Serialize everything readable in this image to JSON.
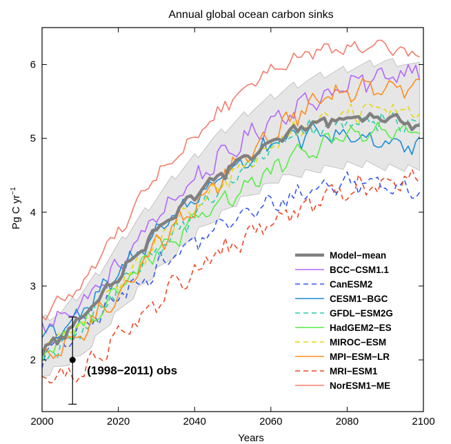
{
  "chart_data": {
    "type": "line",
    "title": "Annual global ocean carbon sinks",
    "xlabel": "Years",
    "ylabel": "Pg C yr",
    "ylabel_sup": "−1",
    "xlim": [
      2000,
      2100
    ],
    "ylim": [
      1.3,
      6.5
    ],
    "x_ticks": [
      2000,
      2020,
      2040,
      2060,
      2080,
      2100
    ],
    "y_ticks": [
      2,
      3,
      4,
      5,
      6
    ],
    "legend_position": "bottom-right",
    "grid": false,
    "band": {
      "x": [
        2000,
        2005,
        2010,
        2015,
        2020,
        2025,
        2030,
        2035,
        2040,
        2045,
        2050,
        2055,
        2060,
        2065,
        2070,
        2075,
        2080,
        2085,
        2090,
        2095,
        2099
      ],
      "upper": [
        2.55,
        2.65,
        2.9,
        3.2,
        3.55,
        3.9,
        4.2,
        4.5,
        4.75,
        5.0,
        5.2,
        5.4,
        5.55,
        5.7,
        5.8,
        5.88,
        5.95,
        6.0,
        6.05,
        6.02,
        5.98
      ],
      "lower": [
        1.8,
        1.92,
        2.05,
        2.35,
        2.65,
        2.95,
        3.2,
        3.45,
        3.7,
        3.9,
        4.1,
        4.25,
        4.4,
        4.5,
        4.55,
        4.6,
        4.65,
        4.65,
        4.62,
        4.6,
        4.58
      ],
      "color": "#e6e6e6"
    },
    "series": [
      {
        "name": "Model−mean",
        "color": "#808080",
        "dash": "",
        "width": 4.5,
        "noise": 0.03,
        "amp": 0.08,
        "x": [
          2000,
          2005,
          2010,
          2020,
          2030,
          2040,
          2050,
          2060,
          2070,
          2080,
          2090,
          2099
        ],
        "y": [
          2.12,
          2.3,
          2.55,
          3.15,
          3.75,
          4.25,
          4.62,
          4.95,
          5.2,
          5.27,
          5.3,
          5.18
        ]
      },
      {
        "name": "BCC−CSM1.1",
        "color": "#b266ff",
        "dash": "",
        "width": 1.6,
        "noise": 0.12,
        "amp": 0.15,
        "x": [
          2000,
          2010,
          2020,
          2030,
          2040,
          2050,
          2060,
          2070,
          2080,
          2090,
          2099
        ],
        "y": [
          2.45,
          2.75,
          3.25,
          3.95,
          4.45,
          4.85,
          5.25,
          5.5,
          5.7,
          5.85,
          5.95
        ]
      },
      {
        "name": "CanESM2",
        "color": "#3355ee",
        "dash": "7,5",
        "width": 1.6,
        "noise": 0.12,
        "amp": 0.15,
        "x": [
          2000,
          2010,
          2020,
          2030,
          2040,
          2050,
          2060,
          2070,
          2080,
          2090,
          2099
        ],
        "y": [
          2.05,
          2.4,
          2.85,
          3.25,
          3.6,
          3.9,
          4.1,
          4.3,
          4.4,
          4.4,
          4.3
        ]
      },
      {
        "name": "CESM1−BGC",
        "color": "#1a8cd8",
        "dash": "",
        "width": 1.6,
        "noise": 0.12,
        "amp": 0.15,
        "x": [
          2000,
          2010,
          2020,
          2030,
          2040,
          2050,
          2060,
          2070,
          2080,
          2090,
          2099
        ],
        "y": [
          2.3,
          2.6,
          3.15,
          3.75,
          4.2,
          4.6,
          4.9,
          5.05,
          5.05,
          4.95,
          4.85
        ]
      },
      {
        "name": "GFDL−ESM2G",
        "color": "#22ccaa",
        "dash": "7,5",
        "width": 1.6,
        "noise": 0.12,
        "amp": 0.15,
        "x": [
          2000,
          2010,
          2020,
          2030,
          2040,
          2050,
          2060,
          2070,
          2080,
          2090,
          2099
        ],
        "y": [
          2.0,
          2.35,
          2.95,
          3.5,
          4.0,
          4.45,
          4.85,
          5.1,
          5.2,
          5.25,
          5.2
        ]
      },
      {
        "name": "HadGEM2−ES",
        "color": "#55ee44",
        "dash": "",
        "width": 1.6,
        "noise": 0.12,
        "amp": 0.15,
        "x": [
          2000,
          2010,
          2020,
          2030,
          2040,
          2050,
          2060,
          2070,
          2080,
          2090,
          2099
        ],
        "y": [
          2.1,
          2.45,
          2.95,
          3.45,
          3.85,
          4.25,
          4.55,
          4.85,
          5.05,
          5.1,
          5.05
        ]
      },
      {
        "name": "MIROC−ESM",
        "color": "#e6d600",
        "dash": "7,5",
        "width": 1.6,
        "noise": 0.12,
        "amp": 0.15,
        "x": [
          2000,
          2010,
          2020,
          2030,
          2040,
          2050,
          2060,
          2070,
          2080,
          2090,
          2099
        ],
        "y": [
          2.15,
          2.5,
          3.05,
          3.55,
          4.05,
          4.5,
          4.9,
          5.2,
          5.35,
          5.4,
          5.35
        ]
      },
      {
        "name": "MPI−ESM−LR",
        "color": "#ff8c1a",
        "dash": "",
        "width": 1.6,
        "noise": 0.12,
        "amp": 0.15,
        "x": [
          2000,
          2010,
          2020,
          2030,
          2040,
          2050,
          2060,
          2070,
          2080,
          2090,
          2099
        ],
        "y": [
          1.95,
          2.35,
          2.9,
          3.55,
          4.1,
          4.6,
          5.05,
          5.45,
          5.65,
          5.75,
          5.65
        ]
      },
      {
        "name": "MRI−ESM1",
        "color": "#ee4422",
        "dash": "7,5",
        "width": 1.6,
        "noise": 0.12,
        "amp": 0.15,
        "x": [
          2000,
          2010,
          2020,
          2030,
          2040,
          2050,
          2060,
          2070,
          2080,
          2090,
          2099
        ],
        "y": [
          1.75,
          1.8,
          2.35,
          2.8,
          3.2,
          3.55,
          3.85,
          4.1,
          4.3,
          4.4,
          4.45
        ]
      },
      {
        "name": "NorESM1−ME",
        "color": "#f07c6c",
        "dash": "",
        "width": 1.6,
        "noise": 0.08,
        "amp": 0.1,
        "x": [
          2000,
          2010,
          2020,
          2030,
          2040,
          2050,
          2060,
          2070,
          2080,
          2090,
          2099
        ],
        "y": [
          2.6,
          3.0,
          3.75,
          4.5,
          5.0,
          5.55,
          5.95,
          6.15,
          6.2,
          6.25,
          6.1
        ]
      }
    ],
    "observation": {
      "label": "(1998−2011) obs",
      "x": 2008,
      "y": 2.0,
      "err_low": 1.4,
      "err_high": 2.58
    }
  }
}
